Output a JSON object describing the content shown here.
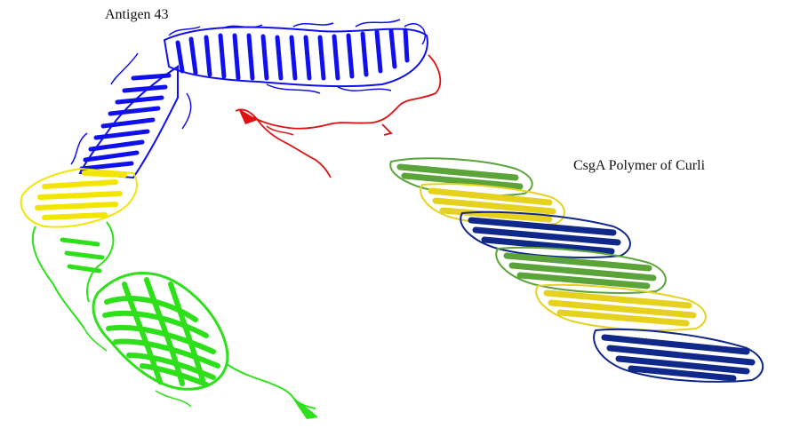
{
  "labels": {
    "antigen": "Antigen 43",
    "csga": "CsgA Polymer of Curli"
  },
  "colors": {
    "blue": "#1010ee",
    "red": "#e01010",
    "yellow": "#f2e600",
    "green": "#2ee01a",
    "curli_green": "#5aa43a",
    "curli_yellow": "#e6d21e",
    "curli_blue": "#10288a"
  },
  "structures": {
    "antigen43": {
      "regions": [
        "blue",
        "red",
        "yellow",
        "green"
      ]
    },
    "csga_polymer": {
      "segments": [
        "curli_green",
        "curli_yellow",
        "curli_blue",
        "curli_green",
        "curli_yellow",
        "curli_blue"
      ]
    }
  }
}
